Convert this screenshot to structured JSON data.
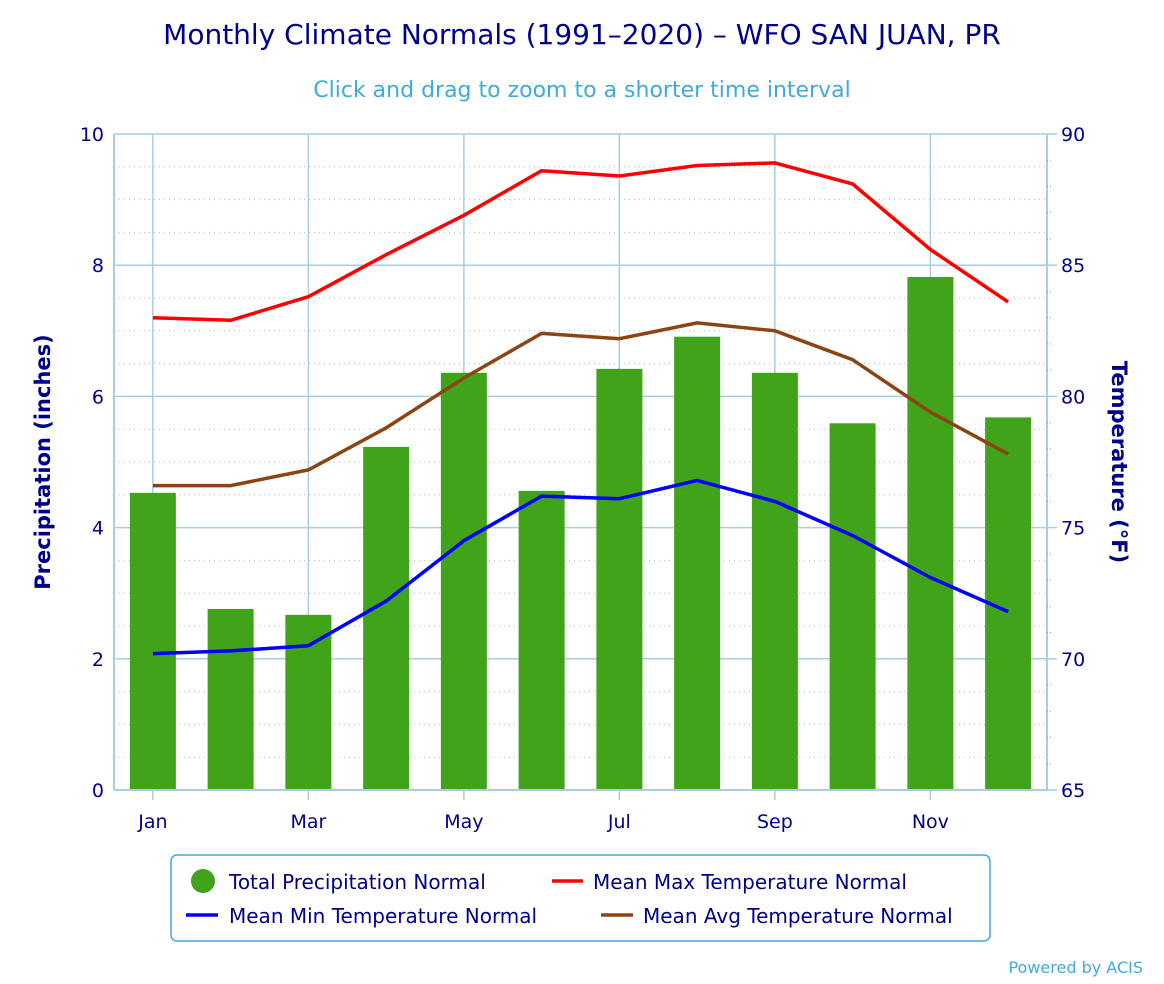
{
  "chart_data": {
    "type": "bar",
    "title": "Monthly Climate Normals (1991–2020) – WFO SAN JUAN, PR",
    "subtitle": "Click and drag to zoom to a shorter time interval",
    "credit": "Powered by ACIS",
    "categories": [
      "Jan",
      "Feb",
      "Mar",
      "Apr",
      "May",
      "Jun",
      "Jul",
      "Aug",
      "Sep",
      "Oct",
      "Nov",
      "Dec"
    ],
    "x_tick_labels": [
      "Jan",
      "",
      "Mar",
      "",
      "May",
      "",
      "Jul",
      "",
      "Sep",
      "",
      "Nov",
      ""
    ],
    "y_left": {
      "label": "Precipitation (inches)",
      "ylim": [
        0,
        10
      ],
      "ticks": [
        0,
        2,
        4,
        6,
        8,
        10
      ]
    },
    "y_right": {
      "label": "Temperature (°F)",
      "ylim": [
        65,
        90
      ],
      "ticks": [
        65,
        70,
        75,
        80,
        85,
        90
      ]
    },
    "grid": true,
    "legend_position": "bottom",
    "series": [
      {
        "name": "Total Precipitation Normal",
        "type": "bar",
        "axis": "left",
        "color": "#41a31a",
        "values": [
          4.53,
          2.76,
          2.67,
          5.23,
          6.36,
          4.56,
          6.42,
          6.91,
          6.36,
          5.59,
          7.82,
          5.68
        ]
      },
      {
        "name": "Mean Max Temperature Normal",
        "type": "line",
        "axis": "right",
        "color": "#ff0000",
        "values": [
          83.0,
          82.9,
          83.8,
          85.4,
          86.9,
          88.6,
          88.4,
          88.8,
          88.9,
          88.1,
          85.6,
          83.6
        ]
      },
      {
        "name": "Mean Min Temperature Normal",
        "type": "line",
        "axis": "right",
        "color": "#0000ff",
        "values": [
          70.2,
          70.3,
          70.5,
          72.2,
          74.5,
          76.2,
          76.1,
          76.8,
          76.0,
          74.7,
          73.1,
          71.8
        ]
      },
      {
        "name": "Mean Avg Temperature Normal",
        "type": "line",
        "axis": "right",
        "color": "#8b4513",
        "values": [
          76.6,
          76.6,
          77.2,
          78.8,
          80.7,
          82.4,
          82.2,
          82.8,
          82.5,
          81.4,
          79.4,
          77.8
        ]
      }
    ]
  }
}
